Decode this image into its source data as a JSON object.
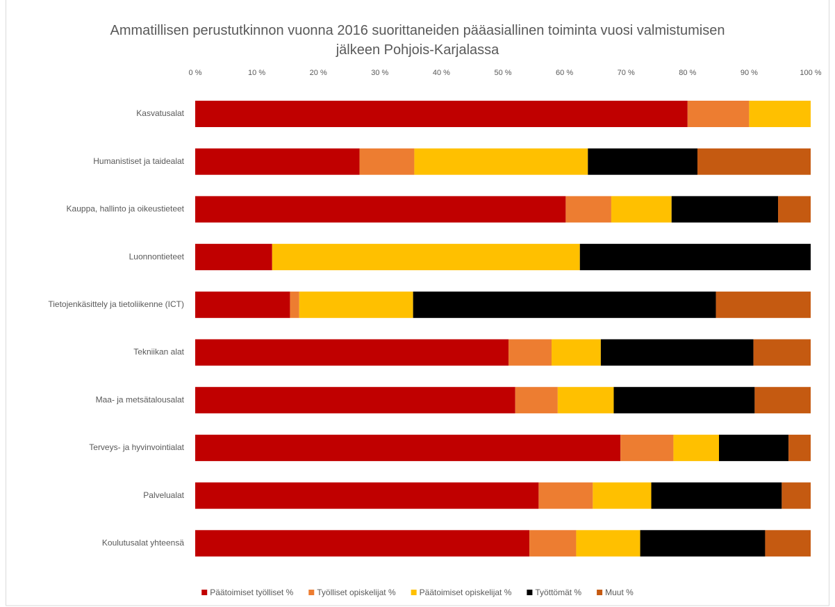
{
  "chart_data": {
    "type": "stacked_barh",
    "title": "Ammatillisen perustutkinnon vuonna 2016 suorittaneiden pääasiallinen toiminta vuosi valmistumisen jälkeen Pohjois-Karjalassa",
    "categories": [
      "Kasvatusalat",
      "Humanistiset ja taidealat",
      "Kauppa, hallinto ja oikeustieteet",
      "Luonnontieteet",
      "Tietojenkäsittely ja tietoliikenne (ICT)",
      "Tekniikan alat",
      "Maa- ja metsätalousalat",
      "Terveys- ja hyvinvointialat",
      "Palvelualat",
      "Koulutusalat yhteensä"
    ],
    "series": [
      {
        "name": "Päätoimiset työlliset %",
        "color": "#c00000",
        "values": [
          80,
          26.7,
          60.2,
          12.5,
          15.4,
          50.9,
          52.0,
          69.1,
          55.8,
          54.3
        ]
      },
      {
        "name": "Työlliset opiskelijat %",
        "color": "#ed7d31",
        "values": [
          10,
          8.9,
          7.4,
          0,
          1.5,
          7.0,
          6.9,
          8.6,
          8.8,
          7.6
        ]
      },
      {
        "name": "Päätoimiset opiskelijat %",
        "color": "#ffc000",
        "values": [
          10,
          28.2,
          9.8,
          50,
          18.5,
          8.0,
          9.1,
          7.4,
          9.5,
          10.4
        ]
      },
      {
        "name": "Työttömät %",
        "color": "#000000",
        "values": [
          0,
          17.8,
          17.3,
          37.5,
          49.2,
          24.8,
          22.9,
          11.3,
          21.2,
          20.3
        ]
      },
      {
        "name": "Muut %",
        "color": "#c55a11",
        "values": [
          0,
          18.4,
          5.3,
          0,
          15.4,
          9.3,
          9.1,
          3.6,
          4.7,
          7.4
        ]
      }
    ],
    "xlim": [
      0,
      100
    ],
    "xticks": [
      {
        "value": 0,
        "label": "0 %"
      },
      {
        "value": 10,
        "label": "10 %"
      },
      {
        "value": 20,
        "label": "20 %"
      },
      {
        "value": 30,
        "label": "30 %"
      },
      {
        "value": 40,
        "label": "40 %"
      },
      {
        "value": 50,
        "label": "50 %"
      },
      {
        "value": 60,
        "label": "60 %"
      },
      {
        "value": 70,
        "label": "70 %"
      },
      {
        "value": 80,
        "label": "80 %"
      },
      {
        "value": 90,
        "label": "90 %"
      },
      {
        "value": 100,
        "label": "100 %"
      }
    ],
    "grid": false,
    "legend": "bottom"
  }
}
